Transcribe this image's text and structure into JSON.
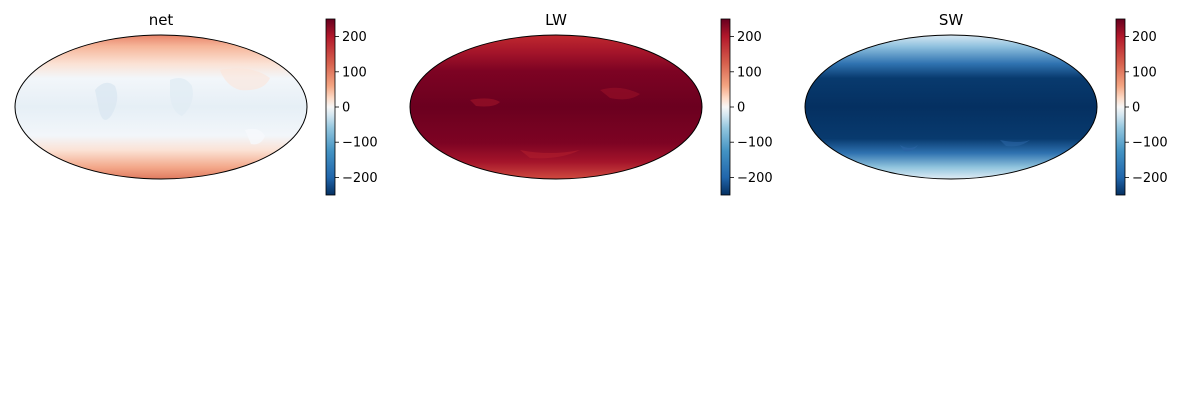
{
  "figure": {
    "panels": [
      {
        "title": "net",
        "field": "net",
        "description_colors": [
          "#f5f9fc",
          "#e9f1f7",
          "#f8c7ad",
          "#ef9777",
          "#d96a52"
        ]
      },
      {
        "title": "LW",
        "field": "lw"
      },
      {
        "title": "SW",
        "field": "sw"
      }
    ],
    "colorbar": {
      "colormap": "RdBu_r",
      "range": [
        -250,
        250
      ],
      "ticks": [
        {
          "value": 200,
          "label": "200"
        },
        {
          "value": 100,
          "label": "100"
        },
        {
          "value": 0,
          "label": "0"
        },
        {
          "value": -100,
          "label": "−100"
        },
        {
          "value": -200,
          "label": "−200"
        }
      ]
    },
    "projection": "Mollweide",
    "colors": {
      "dark_red": "#67001f",
      "red": "#b2182b",
      "light_red": "#f4a582",
      "white": "#f7f7f7",
      "light_blue": "#92c5de",
      "blue": "#2166ac",
      "dark_blue": "#053061"
    }
  }
}
